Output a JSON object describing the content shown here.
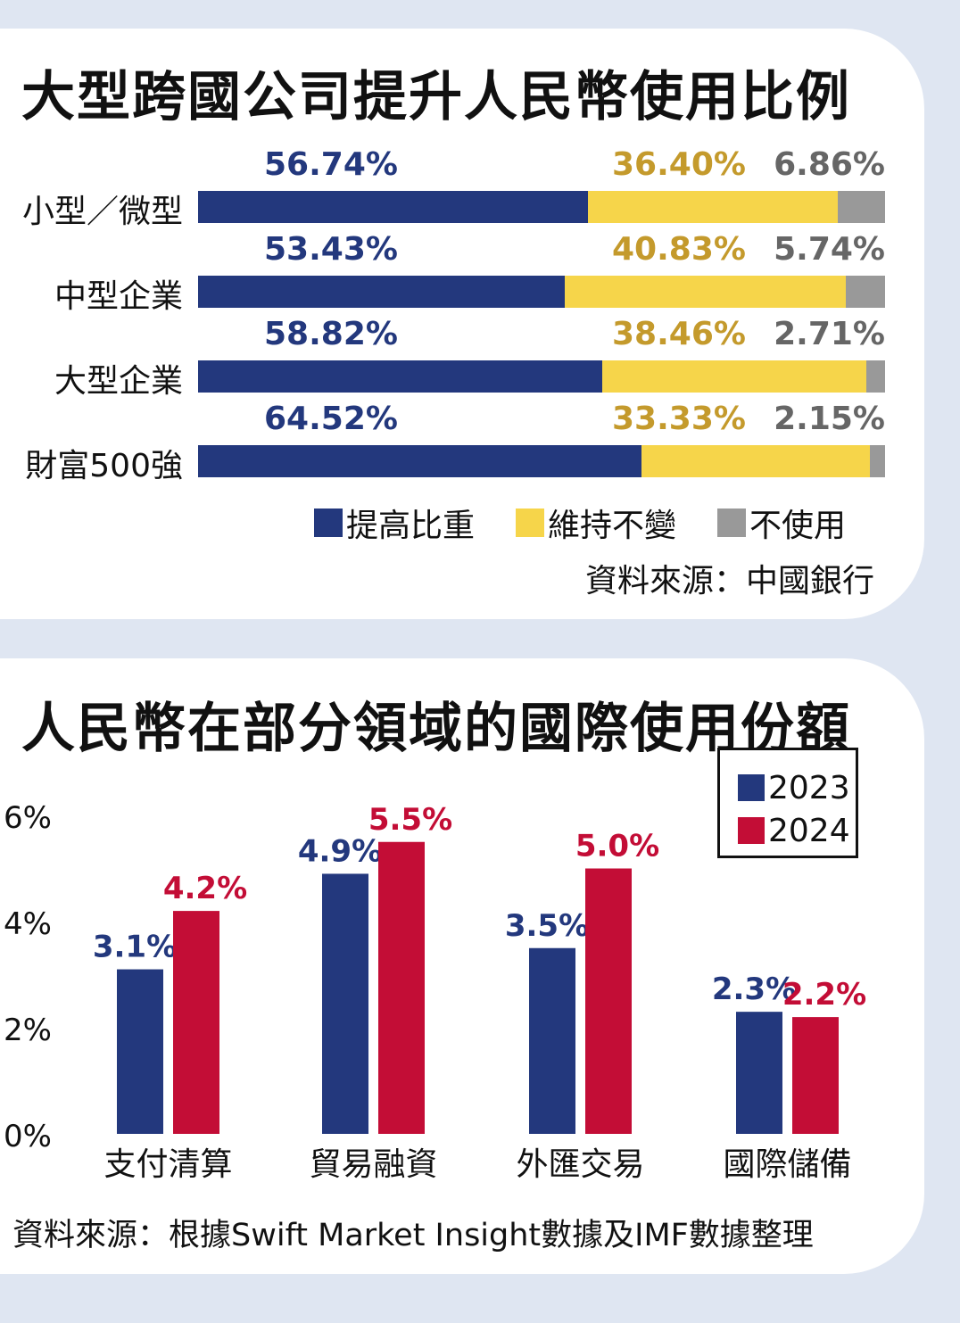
{
  "colors": {
    "blue": "#23387d",
    "yellow": "#f6d54a",
    "gray": "#999999",
    "red": "#c30d36"
  },
  "chart_data": [
    {
      "type": "bar",
      "orientation": "horizontal-stacked",
      "title": "大型跨國公司提升人民幣使用比例",
      "categories": [
        "小型／微型",
        "中型企業",
        "大型企業",
        "財富500強"
      ],
      "series": [
        {
          "name": "提高比重",
          "values": [
            56.74,
            53.43,
            58.82,
            64.52
          ],
          "labels": [
            "56.74%",
            "53.43%",
            "58.82%",
            "64.52%"
          ]
        },
        {
          "name": "維持不變",
          "values": [
            36.4,
            40.83,
            38.46,
            33.33
          ],
          "labels": [
            "36.40%",
            "40.83%",
            "38.46%",
            "33.33%"
          ]
        },
        {
          "name": "不使用",
          "values": [
            6.86,
            5.74,
            2.71,
            2.15
          ],
          "labels": [
            "6.86%",
            "5.74%",
            "2.71%",
            "2.15%"
          ]
        }
      ],
      "legend_position": "bottom-right",
      "source": "資料來源：中國銀行"
    },
    {
      "type": "bar",
      "title": "人民幣在部分領域的國際使用份額",
      "categories": [
        "支付清算",
        "貿易融資",
        "外匯交易",
        "國際儲備"
      ],
      "series": [
        {
          "name": "2023",
          "values": [
            3.1,
            4.9,
            3.5,
            2.3
          ],
          "labels": [
            "3.1%",
            "4.9%",
            "3.5%",
            "2.3%"
          ]
        },
        {
          "name": "2024",
          "values": [
            4.2,
            5.5,
            5.0,
            2.2
          ],
          "labels": [
            "4.2%",
            "5.5%",
            "5.0%",
            "2.2%"
          ]
        }
      ],
      "yticks": [
        "0%",
        "2%",
        "4%",
        "6%"
      ],
      "ylim": [
        0,
        6
      ],
      "grid": false,
      "legend_position": "top-right",
      "source": "資料來源：根據Swift  Market  Insight數據及IMF數據整理"
    }
  ]
}
